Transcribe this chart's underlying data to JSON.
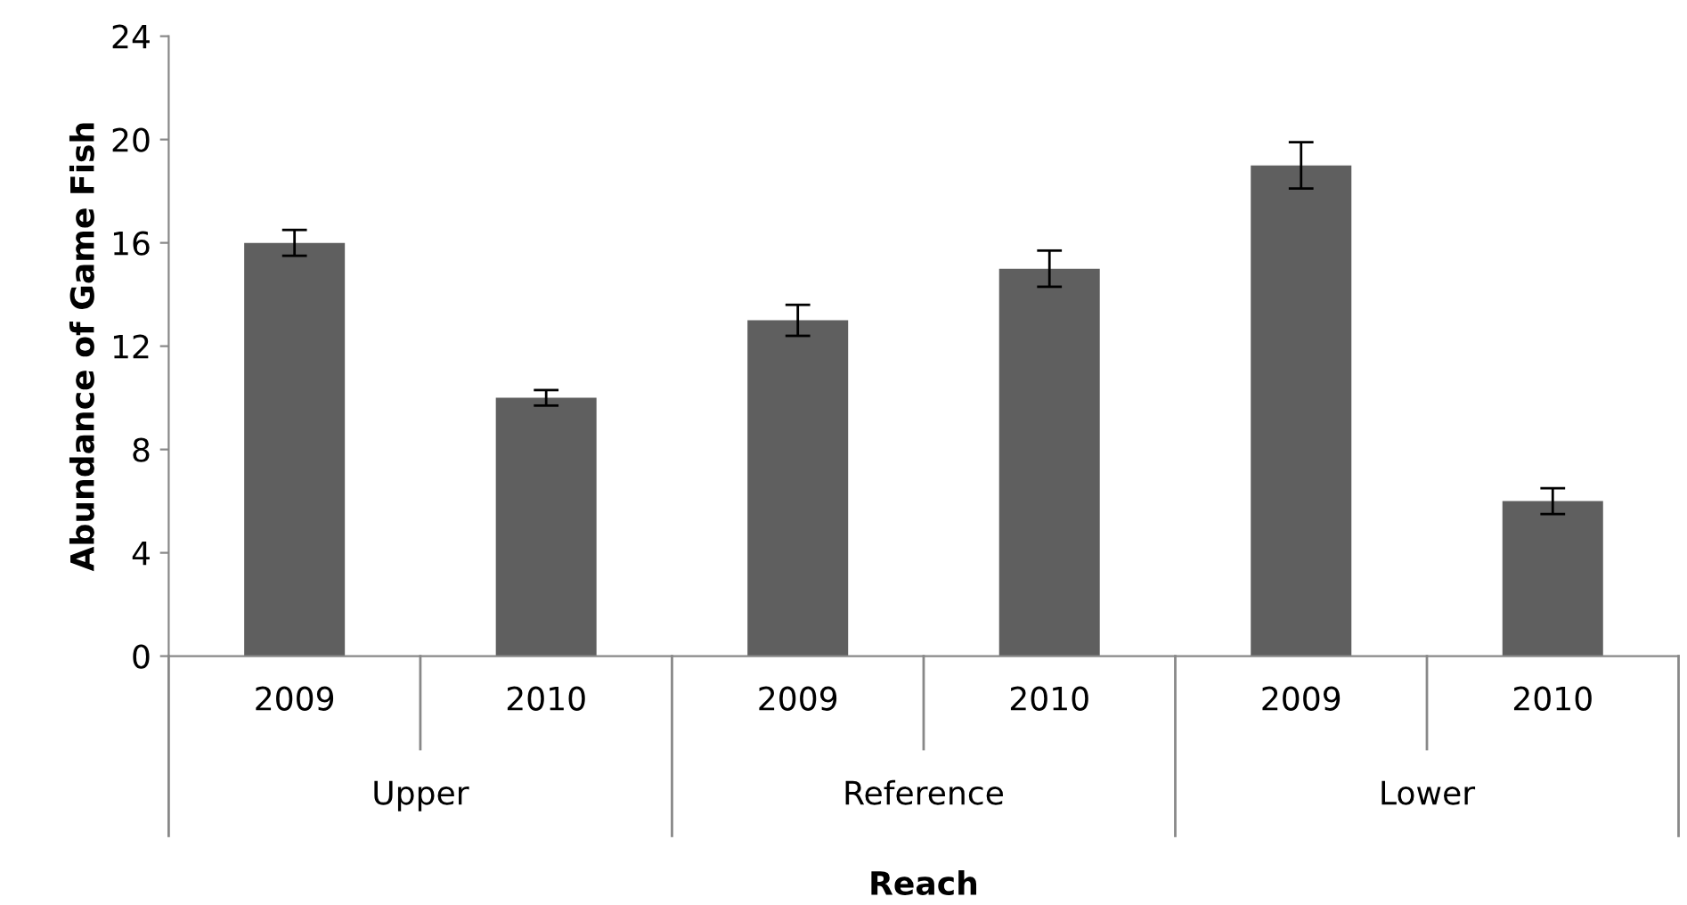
{
  "chart_data": {
    "type": "bar",
    "categories": [
      "2009",
      "2010",
      "2009",
      "2010",
      "2009",
      "2010"
    ],
    "values": [
      16,
      10,
      13,
      15,
      19,
      6
    ],
    "errors": [
      0.5,
      0.3,
      0.6,
      0.7,
      0.9,
      0.5
    ],
    "color": "#5f5f5f",
    "xlabel": "Reach",
    "ylabel": "Abundance of Game Fish",
    "annotations": [
      "Upper",
      "Reference",
      "Lower"
    ],
    "ylim": [
      0,
      24
    ],
    "yticks": [
      0,
      4,
      8,
      12,
      16,
      20,
      24
    ],
    "grid": false
  }
}
